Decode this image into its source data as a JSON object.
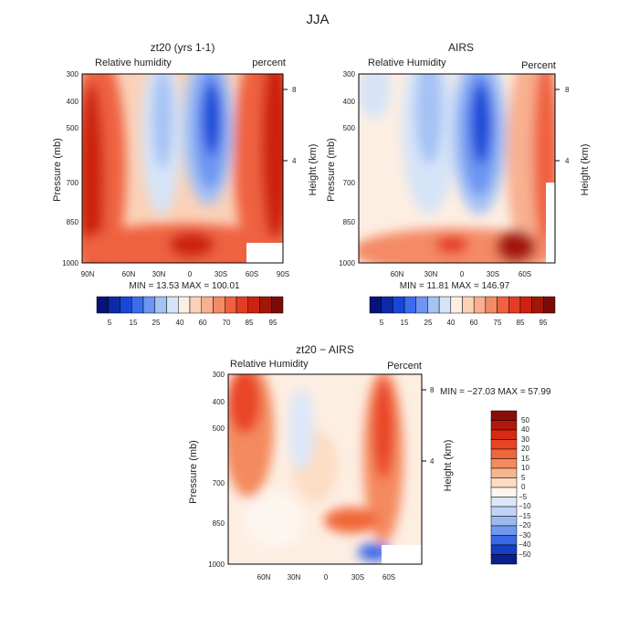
{
  "figure_title": "JJA",
  "chart_data": [
    {
      "type": "heatmap",
      "title": "zt20 (yrs 1-1)",
      "left_label": "Relative humidity",
      "right_label": "percent",
      "ylabel": "Pressure (mb)",
      "ylabel_right": "Height (km)",
      "x_ticks": [
        "90N",
        "60N",
        "30N",
        "0",
        "30S",
        "60S",
        "90S"
      ],
      "y_ticks": [
        "300",
        "400",
        "500",
        "700",
        "850",
        "1000"
      ],
      "height_ticks": [
        "8",
        "4"
      ],
      "stats": "MIN = 13.53 MAX = 100.01",
      "colorbar": {
        "labels": [
          "5",
          "15",
          "25",
          "40",
          "60",
          "70",
          "85",
          "95"
        ],
        "colors": [
          "#08127a",
          "#0a2ba8",
          "#1848d8",
          "#3b6cf0",
          "#6d95f2",
          "#a5c2f4",
          "#d6e4f7",
          "#fdeee2",
          "#fbd1b8",
          "#f8b090",
          "#f48a66",
          "#ef6240",
          "#e53c22",
          "#cc2310",
          "#a6140a",
          "#7a0c06"
        ]
      }
    },
    {
      "type": "heatmap",
      "title": "AIRS",
      "left_label": "Relative Humidity",
      "right_label": "Percent",
      "ylabel": "Pressure (mb)",
      "ylabel_right": "Height (km)",
      "x_ticks": [
        "60N",
        "30N",
        "0",
        "30S",
        "60S"
      ],
      "y_ticks": [
        "300",
        "400",
        "500",
        "700",
        "850",
        "1000"
      ],
      "height_ticks": [
        "8",
        "4"
      ],
      "stats": "MIN = 11.81 MAX = 146.97",
      "colorbar": {
        "labels": [
          "5",
          "15",
          "25",
          "40",
          "60",
          "75",
          "85",
          "95"
        ],
        "colors": [
          "#08127a",
          "#0a2ba8",
          "#1848d8",
          "#3b6cf0",
          "#6d95f2",
          "#a5c2f4",
          "#d6e4f7",
          "#fdeee2",
          "#fbd1b8",
          "#f8b090",
          "#f48a66",
          "#ef6240",
          "#e53c22",
          "#cc2310",
          "#a6140a",
          "#7a0c06"
        ]
      }
    },
    {
      "type": "heatmap",
      "title": "zt20 − AIRS",
      "left_label": "Relative Humidity",
      "right_label": "Percent",
      "ylabel": "Pressure (mb)",
      "ylabel_right": "Height (km)",
      "x_ticks": [
        "60N",
        "30N",
        "0",
        "30S",
        "60S"
      ],
      "y_ticks": [
        "300",
        "400",
        "500",
        "700",
        "850",
        "1000"
      ],
      "height_ticks": [
        "8",
        "4"
      ],
      "stats": "MIN = −27.03 MAX = 57.99",
      "colorbar": {
        "labels": [
          "50",
          "40",
          "30",
          "20",
          "15",
          "10",
          "5",
          "0",
          "−5",
          "−10",
          "−15",
          "−20",
          "−30",
          "−40",
          "−50"
        ],
        "colors": [
          "#8a0d0a",
          "#b3180c",
          "#d62a14",
          "#e94525",
          "#f06638",
          "#f48a5e",
          "#f8b58e",
          "#fddcc4",
          "#fdf6f0",
          "#dbe7f8",
          "#bfd3f4",
          "#9cb9ef",
          "#6f98ee",
          "#3a69e6",
          "#163fc4",
          "#0b1f8e"
        ]
      }
    }
  ]
}
